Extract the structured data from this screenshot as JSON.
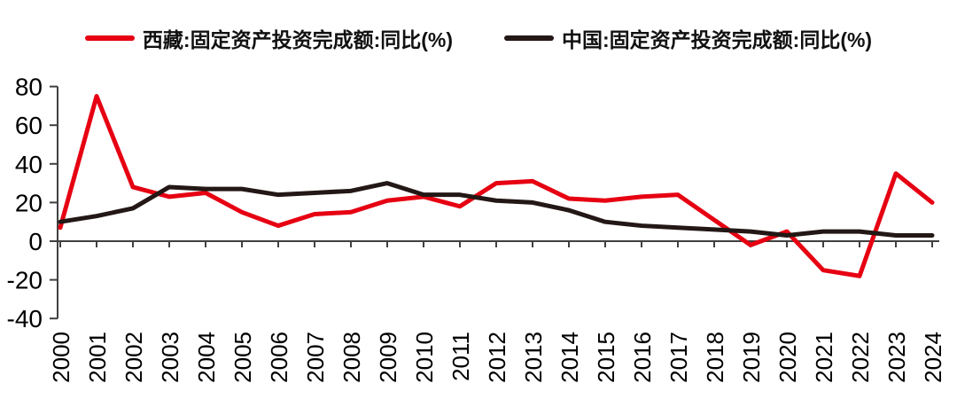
{
  "legend": {
    "items": [
      {
        "label": "西藏:固定资产投资完成额:同比(%)",
        "color": "#e60012"
      },
      {
        "label": "中国:固定资产投资完成额:同比(%)",
        "color": "#231815"
      }
    ]
  },
  "chart_data": {
    "type": "line",
    "x": [
      2000,
      2001,
      2002,
      2003,
      2004,
      2005,
      2006,
      2007,
      2008,
      2009,
      2010,
      2011,
      2012,
      2013,
      2014,
      2015,
      2016,
      2017,
      2018,
      2019,
      2020,
      2021,
      2022,
      2023,
      2024
    ],
    "series": [
      {
        "name": "西藏:固定资产投资完成额:同比(%)",
        "color": "#e60012",
        "values": [
          7,
          75,
          28,
          23,
          25,
          15,
          8,
          14,
          15,
          21,
          23,
          18,
          30,
          31,
          22,
          21,
          23,
          24,
          11,
          -2,
          5,
          -15,
          -18,
          35,
          20
        ]
      },
      {
        "name": "中国:固定资产投资完成额:同比(%)",
        "color": "#231815",
        "values": [
          10,
          13,
          17,
          28,
          27,
          27,
          24,
          25,
          26,
          30,
          24,
          24,
          21,
          20,
          16,
          10,
          8,
          7,
          6,
          5,
          3,
          5,
          5,
          3,
          3
        ]
      }
    ],
    "title": "",
    "xlabel": "",
    "ylabel": "",
    "ylim": [
      -40,
      80
    ],
    "yticks": [
      80,
      60,
      40,
      20,
      0,
      -20,
      -40
    ],
    "grid": false,
    "legend_position": "top",
    "axis_color": "#404040"
  }
}
